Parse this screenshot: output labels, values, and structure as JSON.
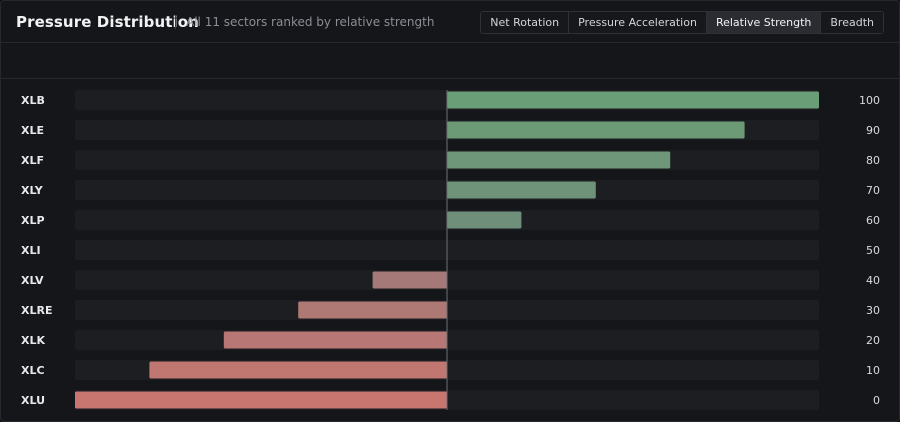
{
  "header": {
    "title": "Pressure Distribution",
    "subtitle": "All 11 sectors ranked by relative strength"
  },
  "tabs": [
    {
      "label": "Net Rotation",
      "active": false
    },
    {
      "label": "Pressure Acceleration",
      "active": false
    },
    {
      "label": "Relative Strength",
      "active": true
    },
    {
      "label": "Breadth",
      "active": false
    }
  ],
  "colors": {
    "positive": "#6a9e76",
    "negative": "#c97670",
    "track": "#1d1e22",
    "axis": "#6e7076"
  },
  "chart_data": {
    "type": "bar",
    "orientation": "horizontal",
    "diverging_center": 50,
    "xlim": [
      0,
      100
    ],
    "categories": [
      "XLB",
      "XLE",
      "XLF",
      "XLY",
      "XLP",
      "XLI",
      "XLV",
      "XLRE",
      "XLK",
      "XLC",
      "XLU"
    ],
    "values": [
      100,
      90,
      80,
      70,
      60,
      50,
      40,
      30,
      20,
      10,
      0
    ]
  }
}
